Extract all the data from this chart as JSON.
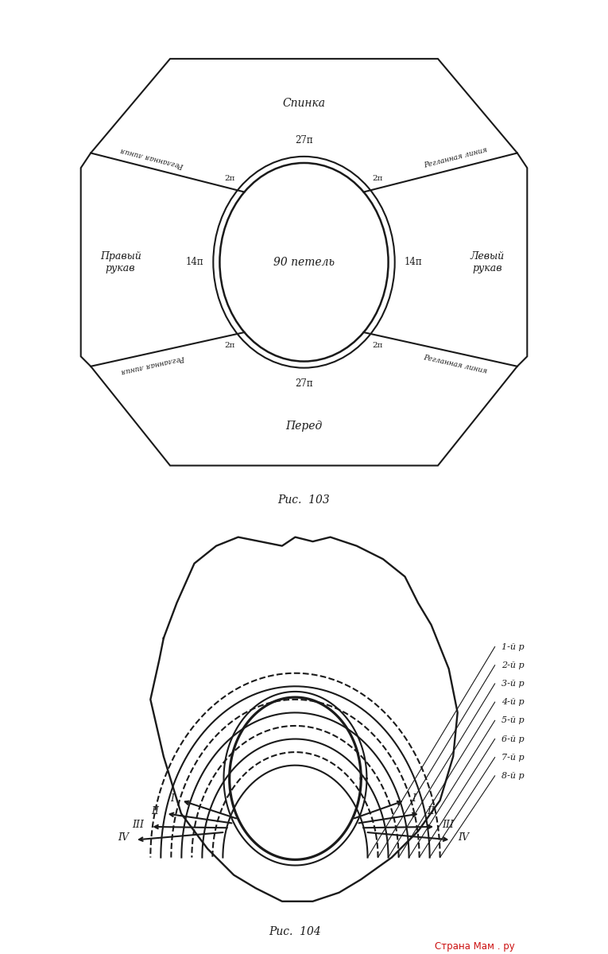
{
  "fig_width": 7.65,
  "fig_height": 12.0,
  "bg_color": "#ffffff",
  "line_color": "#1a1a1a",
  "fig103_caption": "Рис.  103",
  "fig104_caption": "Рис.  104",
  "center_text": "90 петель",
  "spinka_text": "Спинка",
  "pered_text": "Перед",
  "praviy_text": "Правый\nрукав",
  "leviy_text": "Левый\nрукав",
  "regl_line_text": "Регланная линия",
  "label_27": "27п",
  "label_14": "14п",
  "label_2": "2п",
  "row_labels": [
    "1-й р",
    "2-й р",
    "3-й р",
    "4-й р",
    "5-й р",
    "6-й р",
    "7-й р",
    "8-й р"
  ],
  "roman_labels": [
    "I",
    "II",
    "III",
    "IV"
  ]
}
